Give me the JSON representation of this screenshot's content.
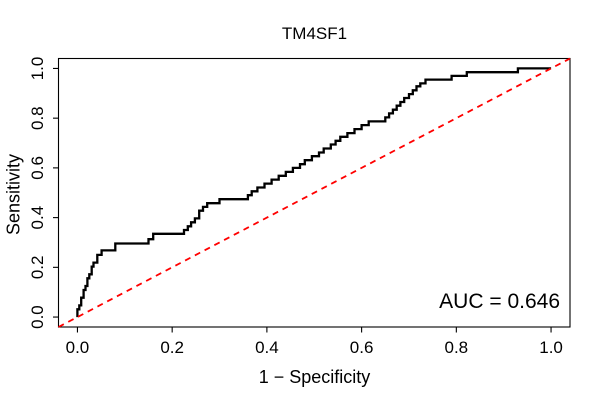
{
  "figure": {
    "title": "TM4SF1",
    "annotation": "AUC = 0.646"
  },
  "chart_data": {
    "type": "line",
    "subtype": "roc-step-curve",
    "title": "TM4SF1",
    "xlabel": "1 − Specificity",
    "ylabel": "Sensitivity",
    "xlim": [
      0,
      1
    ],
    "ylim": [
      0,
      1
    ],
    "grid": false,
    "legend": "none",
    "auc": 0.646,
    "annotation": {
      "text": "AUC = 0.646",
      "anchor": "bottom-right"
    },
    "x_ticks": {
      "values": [
        0,
        0.2,
        0.4,
        0.6,
        0.8,
        1.0
      ],
      "labels": [
        "0.0",
        "0.2",
        "0.4",
        "0.6",
        "0.8",
        "1.0"
      ]
    },
    "y_ticks": {
      "values": [
        0,
        0.2,
        0.4,
        0.6,
        0.8,
        1.0
      ],
      "labels": [
        "0.0",
        "0.2",
        "0.4",
        "0.6",
        "0.8",
        "1.0"
      ]
    },
    "colors": {
      "curve": "#000000",
      "reference": "#ff0000",
      "frame": "#000000"
    },
    "reference_line": {
      "name": "chance-diagonal",
      "from": [
        0,
        0
      ],
      "to": [
        1,
        1
      ],
      "style": "dashed"
    },
    "series": [
      {
        "name": "ROC curve",
        "points": [
          [
            0.0,
            0.0
          ],
          [
            0.0,
            0.031
          ],
          [
            0.004,
            0.031
          ],
          [
            0.004,
            0.047
          ],
          [
            0.008,
            0.047
          ],
          [
            0.008,
            0.078
          ],
          [
            0.013,
            0.078
          ],
          [
            0.013,
            0.109
          ],
          [
            0.017,
            0.109
          ],
          [
            0.017,
            0.125
          ],
          [
            0.021,
            0.125
          ],
          [
            0.021,
            0.156
          ],
          [
            0.025,
            0.156
          ],
          [
            0.025,
            0.172
          ],
          [
            0.03,
            0.172
          ],
          [
            0.03,
            0.203
          ],
          [
            0.034,
            0.203
          ],
          [
            0.034,
            0.219
          ],
          [
            0.042,
            0.219
          ],
          [
            0.042,
            0.25
          ],
          [
            0.051,
            0.25
          ],
          [
            0.051,
            0.268
          ],
          [
            0.08,
            0.268
          ],
          [
            0.08,
            0.296
          ],
          [
            0.15,
            0.296
          ],
          [
            0.15,
            0.313
          ],
          [
            0.16,
            0.313
          ],
          [
            0.16,
            0.335
          ],
          [
            0.225,
            0.335
          ],
          [
            0.225,
            0.35
          ],
          [
            0.233,
            0.35
          ],
          [
            0.233,
            0.365
          ],
          [
            0.24,
            0.365
          ],
          [
            0.24,
            0.381
          ],
          [
            0.248,
            0.381
          ],
          [
            0.248,
            0.397
          ],
          [
            0.257,
            0.397
          ],
          [
            0.257,
            0.428
          ],
          [
            0.265,
            0.428
          ],
          [
            0.265,
            0.443
          ],
          [
            0.274,
            0.443
          ],
          [
            0.274,
            0.458
          ],
          [
            0.3,
            0.458
          ],
          [
            0.3,
            0.474
          ],
          [
            0.36,
            0.474
          ],
          [
            0.36,
            0.49
          ],
          [
            0.368,
            0.49
          ],
          [
            0.368,
            0.506
          ],
          [
            0.38,
            0.506
          ],
          [
            0.38,
            0.521
          ],
          [
            0.395,
            0.521
          ],
          [
            0.395,
            0.537
          ],
          [
            0.41,
            0.537
          ],
          [
            0.41,
            0.553
          ],
          [
            0.425,
            0.553
          ],
          [
            0.425,
            0.568
          ],
          [
            0.44,
            0.568
          ],
          [
            0.44,
            0.584
          ],
          [
            0.455,
            0.584
          ],
          [
            0.455,
            0.6
          ],
          [
            0.47,
            0.6
          ],
          [
            0.47,
            0.615
          ],
          [
            0.48,
            0.615
          ],
          [
            0.48,
            0.631
          ],
          [
            0.495,
            0.631
          ],
          [
            0.495,
            0.647
          ],
          [
            0.51,
            0.647
          ],
          [
            0.51,
            0.662
          ],
          [
            0.52,
            0.662
          ],
          [
            0.52,
            0.678
          ],
          [
            0.535,
            0.678
          ],
          [
            0.535,
            0.694
          ],
          [
            0.545,
            0.694
          ],
          [
            0.545,
            0.709
          ],
          [
            0.555,
            0.709
          ],
          [
            0.555,
            0.725
          ],
          [
            0.57,
            0.725
          ],
          [
            0.57,
            0.74
          ],
          [
            0.585,
            0.74
          ],
          [
            0.585,
            0.756
          ],
          [
            0.6,
            0.756
          ],
          [
            0.6,
            0.772
          ],
          [
            0.615,
            0.772
          ],
          [
            0.615,
            0.787
          ],
          [
            0.65,
            0.787
          ],
          [
            0.65,
            0.803
          ],
          [
            0.658,
            0.803
          ],
          [
            0.658,
            0.819
          ],
          [
            0.666,
            0.819
          ],
          [
            0.666,
            0.834
          ],
          [
            0.674,
            0.834
          ],
          [
            0.674,
            0.85
          ],
          [
            0.682,
            0.85
          ],
          [
            0.682,
            0.865
          ],
          [
            0.69,
            0.865
          ],
          [
            0.69,
            0.881
          ],
          [
            0.7,
            0.881
          ],
          [
            0.7,
            0.897
          ],
          [
            0.708,
            0.897
          ],
          [
            0.708,
            0.912
          ],
          [
            0.716,
            0.912
          ],
          [
            0.716,
            0.928
          ],
          [
            0.724,
            0.928
          ],
          [
            0.724,
            0.94
          ],
          [
            0.735,
            0.94
          ],
          [
            0.735,
            0.955
          ],
          [
            0.79,
            0.955
          ],
          [
            0.79,
            0.97
          ],
          [
            0.822,
            0.97
          ],
          [
            0.822,
            0.985
          ],
          [
            0.93,
            0.985
          ],
          [
            0.93,
            1.0
          ],
          [
            1.0,
            1.0
          ]
        ]
      }
    ],
    "layout_hint": {
      "padding_fraction": 0.04
    }
  }
}
